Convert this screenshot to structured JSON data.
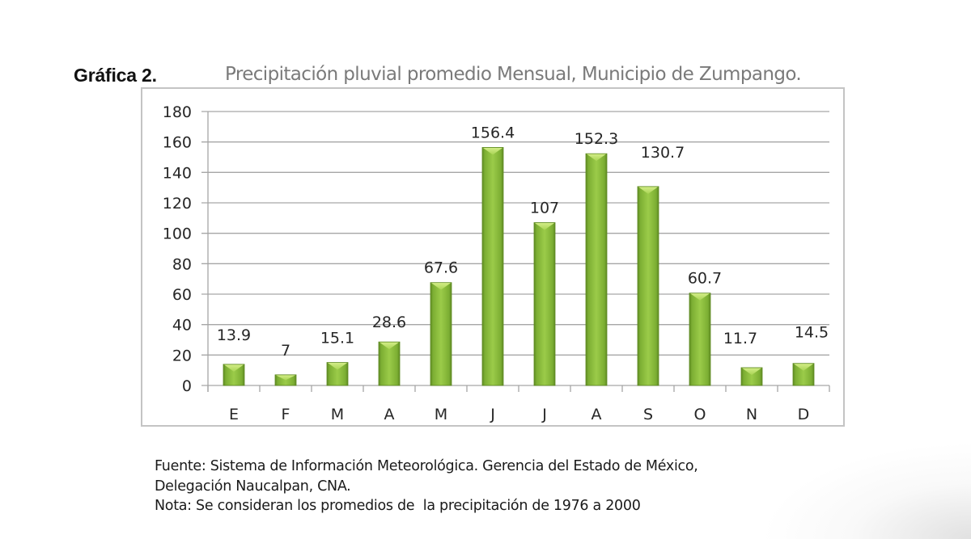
{
  "figure": {
    "label": "Gráfica 2.",
    "title": "Precipitación pluvial promedio Mensual, Municipio de Zumpango."
  },
  "notes": {
    "source_line1": "Fuente: Sistema de Información Meteorológica. Gerencia del Estado de México,",
    "source_line2": "Delegación Naucalpan, CNA.",
    "note_line": "Nota: Se consideran los promedios de  la precipitación de 1976 a 2000"
  },
  "colors": {
    "bar_main": "#8cbf3f",
    "bar_light": "#b5dc5e",
    "bar_dark": "#5e8a22",
    "grid": "#a6a6a6",
    "axis_text": "#262626",
    "frame": "#c4c4c4",
    "title_gray": "#7a7a7a"
  },
  "chart_data": {
    "type": "bar",
    "title": "Precipitación pluvial promedio Mensual, Municipio de Zumpango.",
    "xlabel": "",
    "ylabel": "",
    "categories": [
      "E",
      "F",
      "M",
      "A",
      "M",
      "J",
      "J",
      "A",
      "S",
      "O",
      "N",
      "D"
    ],
    "values": [
      13.9,
      7,
      15.1,
      28.6,
      67.6,
      156.4,
      107,
      152.3,
      130.7,
      60.7,
      11.7,
      14.5
    ],
    "data_labels": [
      "13.9",
      "7",
      "15.1",
      "28.6",
      "67.6",
      "156.4",
      "107",
      "152.3",
      "130.7",
      "60.7",
      "11.7",
      "14.5"
    ],
    "ylim": [
      0,
      180
    ],
    "yticks": [
      0,
      20,
      40,
      60,
      80,
      100,
      120,
      140,
      160,
      180
    ],
    "grid": true,
    "legend": null
  }
}
